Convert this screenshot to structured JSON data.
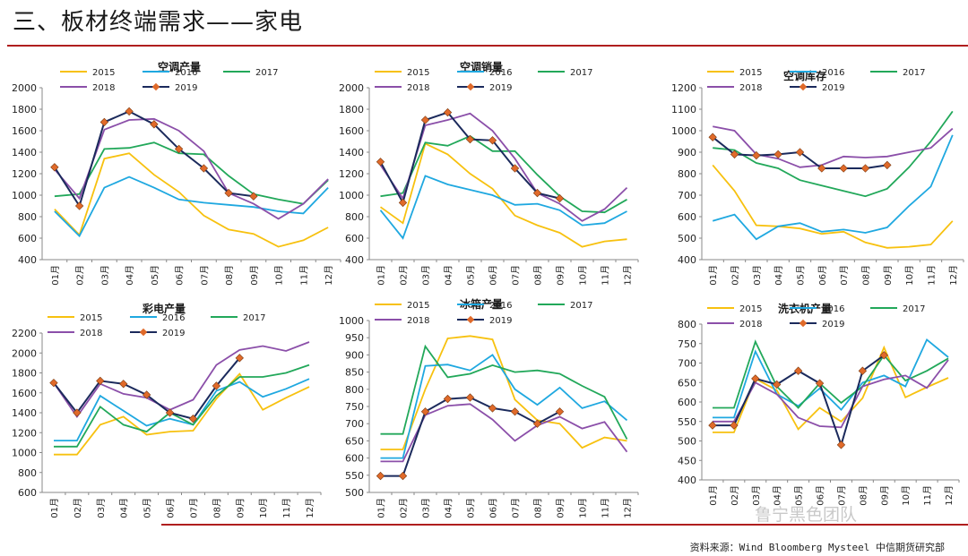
{
  "page": {
    "title": "三、板材终端需求——家电",
    "source": "资料来源：Wind Bloomberg Mysteel 中信期货研究部",
    "watermark": "鲁宁黑色团队"
  },
  "colors": {
    "2015": "#f7c10f",
    "2016": "#1fa8e0",
    "2017": "#22a85a",
    "2018": "#8b4fa9",
    "2019": "#1b2a5c",
    "accent": "#b01e1e",
    "marker": "#e06a2a"
  },
  "chart_data": [
    {
      "type": "line",
      "title": "空调产量",
      "ylim": [
        400,
        2000
      ],
      "yticks": [
        400,
        600,
        800,
        1000,
        1200,
        1400,
        1600,
        1800,
        2000
      ],
      "categories": [
        "01月",
        "02月",
        "03月",
        "04月",
        "05月",
        "06月",
        "07月",
        "08月",
        "09月",
        "10月",
        "11月",
        "12月"
      ],
      "legend": "top",
      "series": [
        {
          "name": "2015",
          "values": [
            870,
            630,
            1340,
            1390,
            1190,
            1030,
            810,
            680,
            640,
            520,
            580,
            700
          ]
        },
        {
          "name": "2016",
          "values": [
            850,
            620,
            1070,
            1170,
            1070,
            960,
            930,
            910,
            890,
            850,
            830,
            1070
          ]
        },
        {
          "name": "2017",
          "values": [
            990,
            1010,
            1430,
            1440,
            1490,
            1390,
            1380,
            1180,
            1010,
            960,
            920,
            1140
          ]
        },
        {
          "name": "2018",
          "values": [
            1240,
            970,
            1610,
            1700,
            1710,
            1600,
            1410,
            1020,
            920,
            780,
            920,
            1150
          ]
        },
        {
          "name": "2019",
          "values": [
            1260,
            900,
            1680,
            1780,
            1660,
            1430,
            1250,
            1020,
            990,
            null,
            null,
            null
          ]
        }
      ]
    },
    {
      "type": "line",
      "title": "空调销量",
      "ylim": [
        400,
        2000
      ],
      "yticks": [
        400,
        600,
        800,
        1000,
        1200,
        1400,
        1600,
        1800,
        2000
      ],
      "categories": [
        "01月",
        "02月",
        "03月",
        "04月",
        "05月",
        "06月",
        "07月",
        "08月",
        "09月",
        "10月",
        "11月",
        "12月"
      ],
      "legend": "top",
      "series": [
        {
          "name": "2015",
          "values": [
            890,
            740,
            1480,
            1380,
            1200,
            1060,
            810,
            720,
            650,
            520,
            570,
            590
          ]
        },
        {
          "name": "2016",
          "values": [
            860,
            600,
            1180,
            1100,
            1050,
            1000,
            910,
            920,
            860,
            720,
            740,
            850
          ]
        },
        {
          "name": "2017",
          "values": [
            990,
            1020,
            1490,
            1460,
            1550,
            1410,
            1410,
            1190,
            990,
            850,
            840,
            960
          ]
        },
        {
          "name": "2018",
          "values": [
            1280,
            970,
            1650,
            1700,
            1760,
            1600,
            1340,
            1020,
            920,
            760,
            870,
            1070
          ]
        },
        {
          "name": "2019",
          "values": [
            1310,
            930,
            1700,
            1770,
            1520,
            1510,
            1250,
            1020,
            970,
            null,
            null,
            null
          ]
        }
      ]
    },
    {
      "type": "line",
      "title": "空调库存",
      "ylim": [
        400,
        1200
      ],
      "yticks": [
        400,
        500,
        600,
        700,
        800,
        900,
        1000,
        1100,
        1200
      ],
      "categories": [
        "01月",
        "02月",
        "03月",
        "04月",
        "05月",
        "06月",
        "07月",
        "08月",
        "09月",
        "10月",
        "11月",
        "12月"
      ],
      "legend": "top",
      "series": [
        {
          "name": "2015",
          "values": [
            840,
            720,
            560,
            555,
            545,
            520,
            530,
            480,
            455,
            460,
            470,
            580
          ]
        },
        {
          "name": "2016",
          "values": [
            580,
            610,
            495,
            555,
            570,
            530,
            540,
            525,
            550,
            650,
            740,
            980
          ]
        },
        {
          "name": "2017",
          "values": [
            920,
            910,
            850,
            825,
            770,
            745,
            720,
            695,
            730,
            830,
            950,
            1090
          ]
        },
        {
          "name": "2018",
          "values": [
            1020,
            1000,
            890,
            870,
            830,
            840,
            880,
            875,
            880,
            900,
            920,
            1010
          ]
        },
        {
          "name": "2019",
          "values": [
            970,
            890,
            885,
            890,
            900,
            825,
            825,
            825,
            840,
            null,
            null,
            null
          ]
        }
      ]
    },
    {
      "type": "line",
      "title": "彩电产量",
      "ylim": [
        600,
        2200
      ],
      "yticks": [
        600,
        800,
        1000,
        1200,
        1400,
        1600,
        1800,
        2000,
        2200
      ],
      "categories": [
        "01月",
        "02月",
        "03月",
        "04月",
        "05月",
        "06月",
        "07月",
        "08月",
        "09月",
        "10月",
        "11月",
        "12月"
      ],
      "legend": "top",
      "series": [
        {
          "name": "2015",
          "values": [
            980,
            980,
            1280,
            1360,
            1180,
            1210,
            1220,
            1540,
            1790,
            1430,
            1550,
            1660
          ]
        },
        {
          "name": "2016",
          "values": [
            1120,
            1120,
            1570,
            1420,
            1270,
            1340,
            1280,
            1620,
            1710,
            1560,
            1640,
            1740
          ]
        },
        {
          "name": "2017",
          "values": [
            1060,
            1060,
            1460,
            1280,
            1210,
            1400,
            1280,
            1570,
            1760,
            1760,
            1800,
            1880
          ]
        },
        {
          "name": "2018",
          "values": [
            1700,
            1360,
            1690,
            1590,
            1550,
            1430,
            1530,
            1880,
            2030,
            2070,
            2020,
            2110
          ]
        },
        {
          "name": "2019",
          "values": [
            1700,
            1400,
            1720,
            1690,
            1580,
            1400,
            1340,
            1670,
            1950,
            null,
            null,
            null
          ]
        }
      ]
    },
    {
      "type": "line",
      "title": "冰箱产量",
      "ylim": [
        500,
        1000
      ],
      "yticks": [
        500,
        550,
        600,
        650,
        700,
        750,
        800,
        850,
        900,
        950,
        1000
      ],
      "categories": [
        "01月",
        "02月",
        "03月",
        "04月",
        "05月",
        "06月",
        "07月",
        "08月",
        "09月",
        "10月",
        "11月",
        "12月"
      ],
      "legend": "top",
      "series": [
        {
          "name": "2015",
          "values": [
            625,
            625,
            800,
            948,
            955,
            945,
            770,
            710,
            700,
            630,
            660,
            650
          ]
        },
        {
          "name": "2016",
          "values": [
            600,
            600,
            868,
            872,
            855,
            900,
            800,
            755,
            805,
            745,
            765,
            710
          ]
        },
        {
          "name": "2017",
          "values": [
            670,
            670,
            925,
            835,
            845,
            870,
            850,
            855,
            845,
            810,
            778,
            655
          ]
        },
        {
          "name": "2018",
          "values": [
            590,
            590,
            725,
            752,
            757,
            712,
            650,
            695,
            720,
            686,
            705,
            618
          ]
        },
        {
          "name": "2019",
          "values": [
            548,
            548,
            735,
            772,
            776,
            745,
            735,
            700,
            735,
            null,
            null,
            null
          ]
        }
      ]
    },
    {
      "type": "line",
      "title": "洗衣机产量",
      "ylim": [
        400,
        800
      ],
      "yticks": [
        400,
        450,
        500,
        550,
        600,
        650,
        700,
        750,
        800
      ],
      "categories": [
        "01月",
        "02月",
        "03月",
        "04月",
        "05月",
        "06月",
        "07月",
        "08月",
        "09月",
        "10月",
        "11月",
        "12月"
      ],
      "legend": "top",
      "series": [
        {
          "name": "2015",
          "values": [
            522,
            522,
            660,
            630,
            530,
            585,
            550,
            610,
            740,
            612,
            638,
            662
          ]
        },
        {
          "name": "2016",
          "values": [
            560,
            560,
            730,
            620,
            590,
            635,
            580,
            650,
            668,
            640,
            760,
            715
          ]
        },
        {
          "name": "2017",
          "values": [
            585,
            585,
            755,
            640,
            585,
            648,
            598,
            640,
            720,
            655,
            680,
            712
          ]
        },
        {
          "name": "2018",
          "values": [
            550,
            550,
            650,
            620,
            560,
            538,
            535,
            640,
            658,
            668,
            636,
            708
          ]
        },
        {
          "name": "2019",
          "values": [
            540,
            540,
            660,
            645,
            680,
            648,
            490,
            680,
            720,
            null,
            null,
            null
          ]
        }
      ]
    }
  ]
}
